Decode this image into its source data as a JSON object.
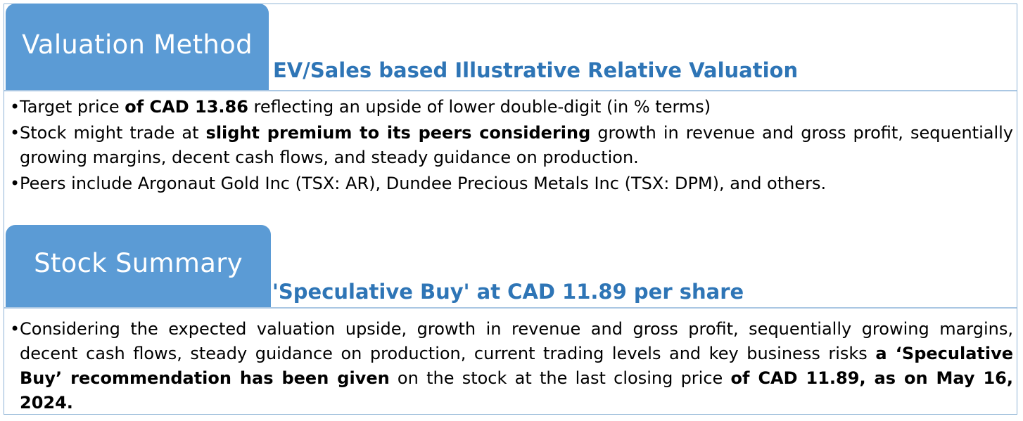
{
  "valuation": {
    "tab_label": "Valuation Method",
    "subtitle": "EV/Sales based Illustrative Relative Valuation",
    "bullets": [
      {
        "a": "Target price ",
        "b": "of CAD 13.86",
        "c": " reflecting an upside of lower double-digit (in % terms)"
      },
      {
        "a": "Stock might trade at ",
        "b": "slight premium to its peers considering",
        "c": " growth in revenue and gross profit, sequentially growing margins, decent cash flows, and steady guidance on production."
      },
      {
        "a": "Peers include Argonaut Gold Inc (TSX: AR), Dundee Precious Metals Inc (TSX: DPM), and others."
      }
    ]
  },
  "summary": {
    "tab_label": "Stock Summary",
    "subtitle": "'Speculative Buy' at CAD 11.89 per share",
    "bullets": [
      {
        "a": "Considering the expected valuation upside, growth in revenue and gross profit, sequentially growing margins, decent cash flows, steady guidance on production, current trading levels and key business risks ",
        "b": "a ‘Speculative Buy’ recommendation has been given",
        "c": " on the stock at the last closing price ",
        "d": "of CAD 11.89, as on May 16, 2024."
      }
    ]
  },
  "colors": {
    "tab_background": "#5b9bd5",
    "subtitle_text": "#2e75b6",
    "rule": "#aac7e3"
  }
}
